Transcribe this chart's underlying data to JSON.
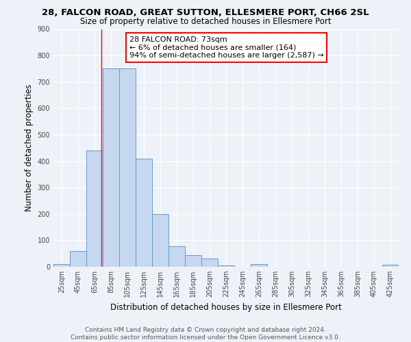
{
  "title_line1": "28, FALCON ROAD, GREAT SUTTON, ELLESMERE PORT, CH66 2SL",
  "title_line2": "Size of property relative to detached houses in Ellesmere Port",
  "xlabel": "Distribution of detached houses by size in Ellesmere Port",
  "ylabel": "Number of detached properties",
  "bar_centers": [
    25,
    45,
    65,
    85,
    105,
    125,
    145,
    165,
    185,
    205,
    225,
    245,
    265,
    285,
    305,
    325,
    345,
    365,
    385,
    405,
    425
  ],
  "bar_heights": [
    10,
    60,
    440,
    750,
    750,
    410,
    200,
    78,
    45,
    30,
    5,
    0,
    10,
    0,
    0,
    0,
    0,
    0,
    0,
    0,
    8
  ],
  "bar_width": 19.5,
  "bar_color": "#c5d8f0",
  "bar_edge_color": "#6699cc",
  "xtick_labels": [
    "25sqm",
    "45sqm",
    "65sqm",
    "85sqm",
    "105sqm",
    "125sqm",
    "145sqm",
    "165sqm",
    "185sqm",
    "205sqm",
    "225sqm",
    "245sqm",
    "265sqm",
    "285sqm",
    "305sqm",
    "325sqm",
    "345sqm",
    "365sqm",
    "385sqm",
    "405sqm",
    "425sqm"
  ],
  "xtick_positions": [
    25,
    45,
    65,
    85,
    105,
    125,
    145,
    165,
    185,
    205,
    225,
    245,
    265,
    285,
    305,
    325,
    345,
    365,
    385,
    405,
    425
  ],
  "ylim": [
    0,
    900
  ],
  "yticks": [
    0,
    100,
    200,
    300,
    400,
    500,
    600,
    700,
    800,
    900
  ],
  "xlim": [
    15,
    435
  ],
  "red_line_x": 73,
  "annotation_title": "28 FALCON ROAD: 73sqm",
  "annotation_line1": "← 6% of detached houses are smaller (164)",
  "annotation_line2": "94% of semi-detached houses are larger (2,587) →",
  "footer_line1": "Contains HM Land Registry data © Crown copyright and database right 2024.",
  "footer_line2": "Contains public sector information licensed under the Open Government Licence v3.0.",
  "bg_color": "#eef2f8",
  "grid_color": "#ffffff",
  "title_fontsize": 9.5,
  "subtitle_fontsize": 8.5,
  "axis_label_fontsize": 8.5,
  "tick_fontsize": 7,
  "annotation_fontsize": 8,
  "footer_fontsize": 6.5
}
